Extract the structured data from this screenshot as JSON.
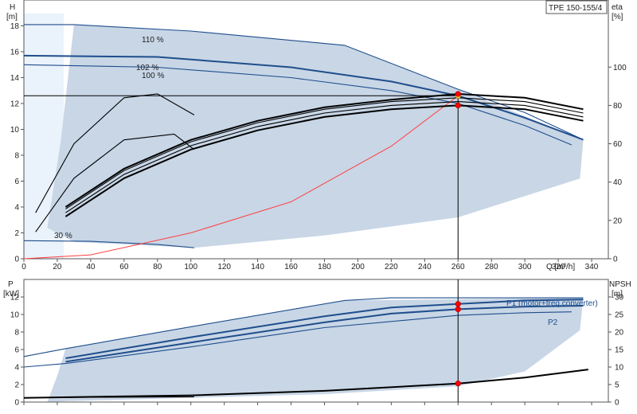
{
  "chart_data": [
    {
      "type": "line",
      "title": "TPE 150-155/4",
      "xlabel": "Q [m³/h]",
      "ylabel": "H",
      "ylabel_unit": "[m]",
      "y2label": "eta",
      "y2label_unit": "[%]",
      "xlim": [
        0,
        350
      ],
      "ylim": [
        0,
        20
      ],
      "y2lim": [
        0,
        135
      ],
      "x_ticks": [
        "0",
        "20",
        "40",
        "60",
        "80",
        "100",
        "120",
        "140",
        "160",
        "180",
        "200",
        "220",
        "240",
        "260",
        "280",
        "300",
        "320",
        "340"
      ],
      "y_ticks": [
        "0",
        "2",
        "4",
        "6",
        "8",
        "10",
        "12",
        "14",
        "16",
        "18"
      ],
      "y2_ticks": [
        "0",
        "20",
        "40",
        "60",
        "80",
        "100"
      ],
      "curve_labels": [
        "110 %",
        "102 %",
        "100 %",
        "30 %"
      ],
      "operating_point": {
        "q": 260,
        "h": 12.6
      },
      "series": [
        {
          "role": "H 110%",
          "color": "#1f4e8c",
          "x": [
            0,
            30,
            100,
            192,
            260,
            300,
            335
          ],
          "y": [
            18.1,
            18.1,
            17.6,
            16.5,
            13.1,
            11.3,
            9.2
          ]
        },
        {
          "role": "H 102%",
          "color": "#1f4e8c",
          "x": [
            0,
            80,
            160,
            220,
            260,
            300,
            335
          ],
          "y": [
            15.7,
            15.6,
            14.8,
            13.7,
            12.6,
            10.9,
            9.2
          ]
        },
        {
          "role": "H 100%",
          "color": "#1f4e8c",
          "x": [
            0,
            80,
            160,
            220,
            260,
            300,
            328
          ],
          "y": [
            15.0,
            14.8,
            14.0,
            13.0,
            12.0,
            10.3,
            8.8
          ]
        },
        {
          "role": "H 30%",
          "color": "#1f4e8c",
          "x": [
            0,
            40,
            80,
            102
          ],
          "y": [
            1.4,
            1.35,
            1.1,
            0.85
          ]
        },
        {
          "role": "system curve",
          "color": "#ff4040",
          "x": [
            0,
            40,
            100,
            160,
            220,
            260
          ],
          "y": [
            0,
            0.3,
            2.0,
            4.4,
            8.7,
            12.6
          ]
        },
        {
          "role": "eta 1",
          "color": "#000000",
          "x": [
            25,
            60,
            100,
            140,
            180,
            220,
            260,
            300,
            335
          ],
          "y2": [
            22,
            42,
            57,
            67,
            74,
            78,
            80,
            78,
            72
          ]
        },
        {
          "role": "eta 2",
          "color": "#000000",
          "x": [
            25,
            60,
            100,
            140,
            180,
            220,
            260,
            300,
            335
          ],
          "y2": [
            24,
            44,
            59,
            69,
            76,
            80,
            82,
            80,
            74
          ]
        },
        {
          "role": "eta 3",
          "color": "#000000",
          "x": [
            25,
            60,
            100,
            140,
            180,
            220,
            260,
            300,
            335
          ],
          "y2": [
            26,
            46,
            61,
            71,
            78,
            82,
            84,
            82,
            76
          ]
        },
        {
          "role": "eta 4",
          "color": "#000000",
          "x": [
            25,
            60,
            100,
            140,
            180,
            220,
            260,
            300,
            335
          ],
          "y2": [
            27,
            47,
            62,
            72,
            79,
            83,
            86,
            84,
            78
          ]
        },
        {
          "role": "eta 30% A",
          "color": "#000000",
          "x": [
            7,
            30,
            60,
            90,
            102
          ],
          "y2": [
            14,
            42,
            62,
            65,
            57
          ]
        },
        {
          "role": "eta 30% B",
          "color": "#000000",
          "x": [
            7,
            30,
            60,
            80,
            102
          ],
          "y2": [
            24,
            60,
            84,
            86,
            75
          ]
        }
      ],
      "markers": [
        {
          "x": 260,
          "y": 12.6,
          "color": "#ffcc33"
        },
        {
          "x": 260,
          "y2": 86,
          "color": "#ff0000"
        },
        {
          "x": 260,
          "y2": 80,
          "color": "#ff0000"
        }
      ]
    },
    {
      "type": "line",
      "xlabel": "",
      "ylabel": "P",
      "ylabel_unit": "[kW]",
      "y2label": "NPSH",
      "y2label_unit": "[m]",
      "xlim": [
        0,
        350
      ],
      "ylim": [
        0,
        14
      ],
      "y2lim": [
        0,
        35
      ],
      "y_ticks": [
        "0",
        "2",
        "4",
        "6",
        "8",
        "10",
        "12"
      ],
      "y2_ticks": [
        "0",
        "5",
        "10",
        "15",
        "20",
        "25",
        "30"
      ],
      "series_labels": [
        "P1 (motor+freq.converter)",
        "P2"
      ],
      "series": [
        {
          "role": "P1 upper",
          "color": "#1f4e8c",
          "x": [
            0,
            25,
            100,
            192,
            220,
            260,
            335
          ],
          "y": [
            5.2,
            6.1,
            8.6,
            11.6,
            11.9,
            11.9,
            11.9
          ]
        },
        {
          "role": "P1 main",
          "color": "#1f4e8c",
          "x": [
            25,
            100,
            180,
            220,
            260,
            300,
            335
          ],
          "y": [
            5.0,
            7.4,
            9.8,
            10.8,
            11.2,
            11.6,
            11.7
          ]
        },
        {
          "role": "P2 main",
          "color": "#1f4e8c",
          "x": [
            25,
            100,
            180,
            220,
            260,
            300,
            335
          ],
          "y": [
            4.6,
            6.8,
            9.1,
            10.1,
            10.6,
            10.9,
            11.0
          ]
        },
        {
          "role": "P2 lower",
          "color": "#1f4e8c",
          "x": [
            0,
            25,
            100,
            180,
            260,
            300,
            328
          ],
          "y": [
            4.0,
            4.4,
            6.3,
            8.5,
            9.9,
            10.2,
            10.3
          ]
        },
        {
          "role": "NPSH",
          "color": "#000000",
          "x": [
            0,
            100,
            180,
            260,
            300,
            338
          ],
          "y2": [
            1.2,
            1.9,
            3.2,
            5.3,
            7.0,
            9.3
          ]
        },
        {
          "role": "P 30%",
          "color": "#000000",
          "x": [
            0,
            50,
            102
          ],
          "y": [
            0.5,
            0.55,
            0.6
          ]
        }
      ],
      "markers": [
        {
          "x": 260,
          "y": 11.2,
          "color": "#ff0000"
        },
        {
          "x": 260,
          "y": 10.6,
          "color": "#ff0000"
        },
        {
          "x": 260,
          "y2": 5.3,
          "color": "#ff0000"
        }
      ]
    }
  ]
}
